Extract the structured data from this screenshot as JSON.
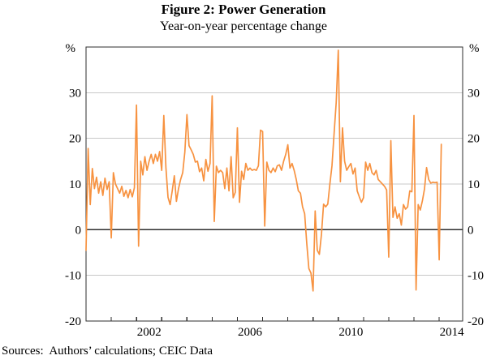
{
  "header": {
    "title": "Figure 2: Power Generation",
    "subtitle": "Year-on-year percentage change"
  },
  "footer": {
    "sources": "Sources:  Authors’ calculations; CEIC Data"
  },
  "chart_data": {
    "type": "line",
    "title": "Figure 2: Power Generation",
    "subtitle": "Year-on-year percentage change",
    "unit_label_left": "%",
    "unit_label_right": "%",
    "ylim": [
      -20,
      40
    ],
    "yticks": [
      -20,
      -10,
      0,
      10,
      20,
      30
    ],
    "gridline_values": [
      -10,
      10,
      20,
      30
    ],
    "zero_line_value": 0,
    "x_axis_start_year": 2000,
    "x_axis_years_span": 14.93,
    "xtick_mark_years": [
      2001,
      2002,
      2003,
      2004,
      2005,
      2006,
      2007,
      2008,
      2009,
      2010,
      2011,
      2012,
      2013,
      2014
    ],
    "xtick_labels": [
      {
        "label": "2002",
        "year": 2002
      },
      {
        "label": "2006",
        "year": 2006
      },
      {
        "label": "2010",
        "year": 2010
      },
      {
        "label": "2014",
        "year": 2014
      }
    ],
    "grid": "horizontal-only",
    "legend": "none",
    "line_color": "#F79240",
    "axis_color": "#2e2e2e",
    "grid_color": "#c8c8c8",
    "series": [
      {
        "name": "Power generation year-on-year percentage change",
        "start": "2000-01",
        "frequency": "monthly",
        "values": [
          -4.5,
          17.8,
          5.5,
          13.4,
          9.0,
          11.5,
          8.0,
          10.5,
          7.5,
          11.3,
          8.8,
          10.5,
          -1.8,
          12.5,
          10.0,
          9.0,
          8.0,
          9.5,
          7.3,
          8.6,
          7.0,
          8.8,
          7.2,
          9.2,
          27.3,
          -3.6,
          15.0,
          12.0,
          16.0,
          13.0,
          15.0,
          16.5,
          14.5,
          16.5,
          15.0,
          17.1,
          13.0,
          25.0,
          13.6,
          7.1,
          5.5,
          8.5,
          11.8,
          6.2,
          9.0,
          11.0,
          12.5,
          17.0,
          25.2,
          18.4,
          17.5,
          16.5,
          14.8,
          15.0,
          12.7,
          13.5,
          10.7,
          15.4,
          12.8,
          14.5,
          29.3,
          1.8,
          13.9,
          12.5,
          13.0,
          12.5,
          9.0,
          13.5,
          8.5,
          16.0,
          7.0,
          8.2,
          22.3,
          6.0,
          12.8,
          11.0,
          14.5,
          13.0,
          13.5,
          13.0,
          13.2,
          13.0,
          14.0,
          21.8,
          21.5,
          0.8,
          14.8,
          13.0,
          12.5,
          13.5,
          12.7,
          14.0,
          14.2,
          13.0,
          15.0,
          16.5,
          18.6,
          13.5,
          14.5,
          13.0,
          11.0,
          8.5,
          8.0,
          5.0,
          3.5,
          -3.0,
          -8.5,
          -9.5,
          -13.4,
          4.1,
          -4.5,
          -5.4,
          -1.0,
          5.6,
          5.0,
          5.6,
          10.0,
          14.0,
          21.0,
          27.8,
          39.3,
          10.5,
          22.3,
          15.0,
          13.0,
          13.8,
          14.5,
          12.2,
          13.5,
          8.5,
          7.2,
          6.0,
          7.0,
          14.8,
          13.0,
          14.5,
          12.5,
          12.0,
          13.0,
          11.0,
          10.5,
          10.0,
          9.5,
          8.7,
          -6.0,
          19.5,
          2.7,
          5.0,
          2.5,
          3.5,
          1.0,
          5.5,
          4.5,
          5.0,
          8.5,
          8.3,
          25.0,
          -13.2,
          5.5,
          4.3,
          6.3,
          8.9,
          13.6,
          11.0,
          10.2,
          10.4,
          10.3,
          10.4,
          -6.6,
          18.7
        ]
      }
    ]
  }
}
